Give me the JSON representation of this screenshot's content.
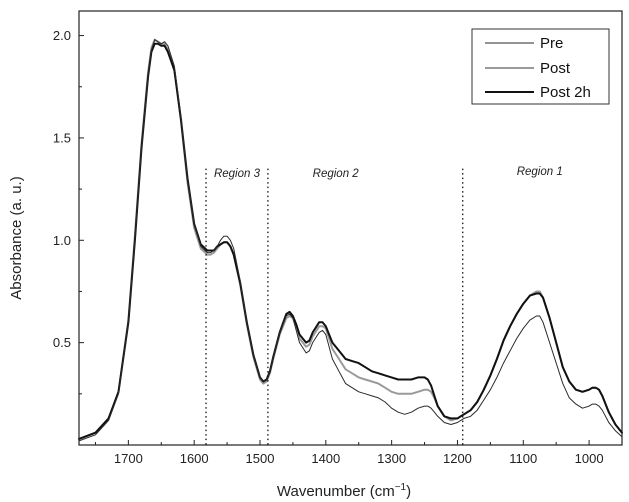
{
  "chart_data": {
    "type": "line",
    "xlabel": "Wavenumber (cm",
    "xlabel_sup": "−1",
    "xlabel_close": ")",
    "ylabel": "Absorbance (a. u.)",
    "xlim": [
      1775,
      950
    ],
    "ylim": [
      0.0,
      2.12
    ],
    "x_reversed": true,
    "x_ticks": [
      1700,
      1600,
      1500,
      1400,
      1300,
      1200,
      1100,
      1000
    ],
    "y_ticks": [
      0.5,
      1.0,
      1.5,
      2.0
    ],
    "y_tick_labels": [
      "0.5",
      "1.0",
      "1.5",
      "2.0"
    ],
    "legend_position": "top-right",
    "grid": false,
    "region_lines": [
      1582,
      1488,
      1192
    ],
    "region_labels": [
      {
        "text": "Region 3",
        "x": 1535,
        "y": 1.31
      },
      {
        "text": "Region 2",
        "x": 1385,
        "y": 1.31
      },
      {
        "text": "Region 1",
        "x": 1075,
        "y": 1.32
      }
    ],
    "series": [
      {
        "name": "Pre",
        "color": "#2a2a2a",
        "width": 1.0,
        "x": [
          1775,
          1750,
          1730,
          1715,
          1700,
          1690,
          1680,
          1670,
          1665,
          1660,
          1655,
          1650,
          1645,
          1640,
          1630,
          1620,
          1610,
          1600,
          1590,
          1580,
          1575,
          1570,
          1565,
          1560,
          1555,
          1550,
          1545,
          1540,
          1530,
          1520,
          1510,
          1500,
          1495,
          1490,
          1485,
          1480,
          1470,
          1460,
          1455,
          1450,
          1445,
          1440,
          1430,
          1425,
          1420,
          1410,
          1405,
          1400,
          1395,
          1390,
          1380,
          1370,
          1360,
          1350,
          1340,
          1330,
          1320,
          1310,
          1300,
          1290,
          1280,
          1270,
          1260,
          1250,
          1245,
          1240,
          1235,
          1230,
          1220,
          1210,
          1200,
          1195,
          1190,
          1180,
          1170,
          1160,
          1150,
          1140,
          1130,
          1120,
          1110,
          1100,
          1090,
          1080,
          1075,
          1070,
          1060,
          1050,
          1040,
          1030,
          1020,
          1010,
          1000,
          995,
          990,
          985,
          980,
          970,
          960,
          950
        ],
        "y": [
          0.02,
          0.05,
          0.12,
          0.25,
          0.6,
          1.0,
          1.45,
          1.8,
          1.93,
          1.98,
          1.97,
          1.96,
          1.97,
          1.95,
          1.85,
          1.6,
          1.3,
          1.08,
          0.97,
          0.94,
          0.94,
          0.95,
          0.97,
          1.0,
          1.02,
          1.02,
          1.0,
          0.96,
          0.8,
          0.6,
          0.44,
          0.33,
          0.31,
          0.32,
          0.36,
          0.43,
          0.55,
          0.63,
          0.64,
          0.62,
          0.56,
          0.5,
          0.45,
          0.46,
          0.5,
          0.55,
          0.56,
          0.54,
          0.48,
          0.42,
          0.36,
          0.3,
          0.28,
          0.26,
          0.25,
          0.24,
          0.23,
          0.21,
          0.18,
          0.16,
          0.15,
          0.16,
          0.18,
          0.19,
          0.19,
          0.18,
          0.16,
          0.14,
          0.11,
          0.1,
          0.11,
          0.12,
          0.13,
          0.14,
          0.17,
          0.22,
          0.27,
          0.33,
          0.4,
          0.46,
          0.52,
          0.57,
          0.61,
          0.63,
          0.63,
          0.6,
          0.5,
          0.4,
          0.3,
          0.23,
          0.2,
          0.18,
          0.19,
          0.2,
          0.2,
          0.19,
          0.17,
          0.11,
          0.07,
          0.04
        ]
      },
      {
        "name": "Post",
        "color": "#9a9a9a",
        "width": 2.0,
        "x": [
          1775,
          1750,
          1730,
          1715,
          1700,
          1690,
          1680,
          1670,
          1665,
          1660,
          1655,
          1650,
          1645,
          1640,
          1630,
          1620,
          1610,
          1600,
          1590,
          1580,
          1575,
          1570,
          1565,
          1560,
          1555,
          1550,
          1545,
          1540,
          1530,
          1520,
          1510,
          1500,
          1495,
          1490,
          1485,
          1480,
          1470,
          1460,
          1455,
          1450,
          1445,
          1440,
          1430,
          1425,
          1420,
          1410,
          1405,
          1400,
          1395,
          1390,
          1380,
          1370,
          1360,
          1350,
          1340,
          1330,
          1320,
          1310,
          1300,
          1290,
          1280,
          1270,
          1260,
          1250,
          1245,
          1240,
          1235,
          1230,
          1220,
          1210,
          1200,
          1195,
          1190,
          1180,
          1170,
          1160,
          1150,
          1140,
          1130,
          1120,
          1110,
          1100,
          1090,
          1080,
          1075,
          1070,
          1060,
          1050,
          1040,
          1030,
          1020,
          1010,
          1000,
          995,
          990,
          985,
          980,
          970,
          960,
          950
        ],
        "y": [
          0.03,
          0.06,
          0.13,
          0.26,
          0.61,
          1.02,
          1.47,
          1.82,
          1.94,
          1.98,
          1.97,
          1.96,
          1.96,
          1.93,
          1.83,
          1.58,
          1.28,
          1.06,
          0.96,
          0.93,
          0.93,
          0.94,
          0.96,
          0.98,
          0.99,
          0.99,
          0.97,
          0.93,
          0.78,
          0.59,
          0.43,
          0.32,
          0.3,
          0.31,
          0.35,
          0.42,
          0.54,
          0.62,
          0.63,
          0.62,
          0.58,
          0.52,
          0.48,
          0.49,
          0.53,
          0.58,
          0.58,
          0.57,
          0.52,
          0.47,
          0.42,
          0.37,
          0.35,
          0.33,
          0.32,
          0.31,
          0.3,
          0.28,
          0.26,
          0.25,
          0.25,
          0.25,
          0.26,
          0.27,
          0.27,
          0.26,
          0.23,
          0.19,
          0.14,
          0.12,
          0.13,
          0.14,
          0.15,
          0.17,
          0.21,
          0.27,
          0.34,
          0.42,
          0.51,
          0.58,
          0.64,
          0.69,
          0.73,
          0.75,
          0.75,
          0.72,
          0.62,
          0.5,
          0.38,
          0.31,
          0.27,
          0.26,
          0.27,
          0.28,
          0.28,
          0.27,
          0.24,
          0.16,
          0.1,
          0.06
        ]
      },
      {
        "name": "Post 2h",
        "color": "#111111",
        "width": 2.0,
        "x": [
          1775,
          1750,
          1730,
          1715,
          1700,
          1690,
          1680,
          1670,
          1665,
          1660,
          1655,
          1650,
          1645,
          1640,
          1630,
          1620,
          1610,
          1600,
          1590,
          1580,
          1575,
          1570,
          1565,
          1560,
          1555,
          1550,
          1545,
          1540,
          1530,
          1520,
          1510,
          1500,
          1495,
          1490,
          1485,
          1480,
          1470,
          1460,
          1455,
          1450,
          1445,
          1440,
          1430,
          1425,
          1420,
          1410,
          1405,
          1400,
          1395,
          1390,
          1380,
          1370,
          1360,
          1350,
          1340,
          1330,
          1320,
          1310,
          1300,
          1290,
          1280,
          1270,
          1260,
          1250,
          1245,
          1240,
          1235,
          1230,
          1220,
          1210,
          1200,
          1195,
          1190,
          1180,
          1170,
          1160,
          1150,
          1140,
          1130,
          1120,
          1110,
          1100,
          1090,
          1080,
          1075,
          1070,
          1060,
          1050,
          1040,
          1030,
          1020,
          1010,
          1000,
          995,
          990,
          985,
          980,
          970,
          960,
          950
        ],
        "y": [
          0.03,
          0.06,
          0.13,
          0.26,
          0.6,
          1.0,
          1.45,
          1.8,
          1.92,
          1.96,
          1.96,
          1.95,
          1.95,
          1.92,
          1.83,
          1.59,
          1.3,
          1.08,
          0.98,
          0.95,
          0.95,
          0.95,
          0.97,
          0.98,
          0.99,
          0.99,
          0.97,
          0.93,
          0.79,
          0.6,
          0.44,
          0.33,
          0.31,
          0.32,
          0.36,
          0.43,
          0.55,
          0.64,
          0.65,
          0.63,
          0.59,
          0.54,
          0.5,
          0.51,
          0.55,
          0.6,
          0.6,
          0.58,
          0.54,
          0.5,
          0.46,
          0.42,
          0.41,
          0.4,
          0.38,
          0.36,
          0.35,
          0.34,
          0.33,
          0.32,
          0.32,
          0.32,
          0.33,
          0.33,
          0.32,
          0.29,
          0.24,
          0.19,
          0.14,
          0.13,
          0.13,
          0.14,
          0.15,
          0.17,
          0.21,
          0.27,
          0.34,
          0.42,
          0.51,
          0.58,
          0.64,
          0.69,
          0.73,
          0.74,
          0.74,
          0.72,
          0.62,
          0.5,
          0.38,
          0.31,
          0.27,
          0.26,
          0.27,
          0.28,
          0.28,
          0.27,
          0.24,
          0.16,
          0.1,
          0.06
        ]
      }
    ]
  }
}
